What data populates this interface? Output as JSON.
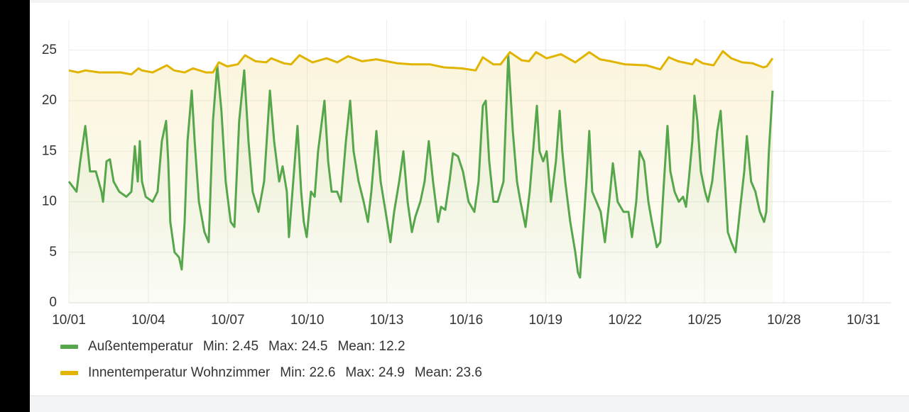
{
  "chart_data": {
    "type": "line",
    "xlim": [
      1,
      32.05
    ],
    "xticks": [
      {
        "value": 1,
        "label": "10/01"
      },
      {
        "value": 4,
        "label": "10/04"
      },
      {
        "value": 7,
        "label": "10/07"
      },
      {
        "value": 10,
        "label": "10/10"
      },
      {
        "value": 13,
        "label": "10/13"
      },
      {
        "value": 16,
        "label": "10/16"
      },
      {
        "value": 19,
        "label": "10/19"
      },
      {
        "value": 22,
        "label": "10/22"
      },
      {
        "value": 25,
        "label": "10/25"
      },
      {
        "value": 28,
        "label": "10/28"
      },
      {
        "value": 31,
        "label": "10/31"
      }
    ],
    "ylim": [
      0,
      28
    ],
    "yticks": [
      0,
      5,
      10,
      15,
      20,
      25
    ],
    "grid": true,
    "legend": "bottom",
    "series": [
      {
        "name": "Außentemperatur",
        "color": "#56a64b",
        "stats": [
          "Min: 2.45",
          "Max: 24.5",
          "Mean: 12.2"
        ],
        "x": [
          1.0,
          1.29,
          1.43,
          1.62,
          1.8,
          2.02,
          2.23,
          2.29,
          2.42,
          2.55,
          2.69,
          2.9,
          3.17,
          3.36,
          3.49,
          3.6,
          3.68,
          3.76,
          3.9,
          4.16,
          4.35,
          4.51,
          4.67,
          4.75,
          4.83,
          4.99,
          5.16,
          5.26,
          5.37,
          5.48,
          5.64,
          5.75,
          5.91,
          6.12,
          6.28,
          6.44,
          6.6,
          6.76,
          6.92,
          7.11,
          7.25,
          7.43,
          7.62,
          7.78,
          7.94,
          8.16,
          8.37,
          8.59,
          8.75,
          8.94,
          9.07,
          9.23,
          9.31,
          9.47,
          9.63,
          9.77,
          9.87,
          9.98,
          10.14,
          10.28,
          10.41,
          10.65,
          10.79,
          10.92,
          11.13,
          11.27,
          11.46,
          11.62,
          11.75,
          11.94,
          12.13,
          12.29,
          12.42,
          12.61,
          12.77,
          12.96,
          13.14,
          13.28,
          13.47,
          13.63,
          13.79,
          13.95,
          14.08,
          14.27,
          14.43,
          14.59,
          14.75,
          14.94,
          15.05,
          15.21,
          15.37,
          15.5,
          15.69,
          15.88,
          16.09,
          16.31,
          16.47,
          16.63,
          16.74,
          16.87,
          17.03,
          17.19,
          17.41,
          17.59,
          17.76,
          17.92,
          18.05,
          18.24,
          18.4,
          18.59,
          18.67,
          18.77,
          18.91,
          19.04,
          19.2,
          19.39,
          19.53,
          19.63,
          19.74,
          19.93,
          20.12,
          20.22,
          20.3,
          20.44,
          20.54,
          20.65,
          20.76,
          20.92,
          21.08,
          21.24,
          21.4,
          21.54,
          21.72,
          21.94,
          22.13,
          22.26,
          22.42,
          22.55,
          22.72,
          22.88,
          23.01,
          23.2,
          23.33,
          23.47,
          23.6,
          23.71,
          23.87,
          24.03,
          24.19,
          24.3,
          24.4,
          24.54,
          24.62,
          24.73,
          24.86,
          25.02,
          25.13,
          25.29,
          25.48,
          25.61,
          25.75,
          25.88,
          26.01,
          26.17,
          26.33,
          26.5,
          26.6,
          26.76,
          26.92,
          27.09,
          27.25,
          27.33,
          27.43,
          27.57
        ],
        "values": [
          12,
          11,
          14,
          17.5,
          13,
          13,
          11,
          10,
          14,
          14.2,
          12,
          11,
          10.5,
          11,
          15.5,
          12,
          16,
          12,
          10.5,
          10,
          11,
          16,
          18,
          14,
          8,
          5,
          4.5,
          3.3,
          8,
          16,
          21,
          16,
          10,
          7,
          6,
          18,
          23.5,
          19,
          12,
          8,
          7.5,
          18,
          23,
          16,
          11,
          9,
          12,
          21,
          16,
          12,
          13.5,
          11,
          6.5,
          12,
          17.5,
          11,
          8,
          6.5,
          11,
          10.5,
          15,
          20,
          14,
          11,
          11,
          10,
          16,
          20,
          15,
          12,
          10,
          8,
          11,
          17,
          12,
          9,
          6,
          9,
          12,
          15,
          10,
          7,
          8.5,
          10,
          12,
          16,
          12,
          8,
          9.5,
          9.2,
          12,
          14.8,
          14.5,
          13,
          10,
          9,
          12,
          19.5,
          20,
          14,
          10,
          10,
          12,
          24.5,
          17,
          12,
          10,
          7.5,
          11,
          17,
          19.5,
          15,
          14,
          15,
          10,
          14,
          19,
          15,
          12,
          8,
          5,
          3,
          2.5,
          8,
          12,
          17,
          11,
          10,
          9,
          6,
          10,
          13.8,
          10,
          9,
          9,
          6.5,
          10,
          15,
          14,
          10,
          8,
          5.5,
          6,
          12,
          17.5,
          13,
          11,
          10,
          10.5,
          9.5,
          12,
          16,
          20.5,
          18,
          13,
          11,
          10,
          12,
          17,
          19,
          13,
          7,
          6,
          5,
          9,
          13,
          16.5,
          12,
          11,
          9,
          8,
          9,
          15,
          21
        ]
      },
      {
        "name": "Innentemperatur Wohnzimmer",
        "color": "#e0b400",
        "stats": [
          "Min: 22.6",
          "Max: 24.9",
          "Mean: 23.6"
        ],
        "x": [
          1.0,
          1.35,
          1.62,
          2.15,
          2.96,
          3.36,
          3.63,
          3.76,
          4.16,
          4.7,
          4.97,
          5.37,
          5.69,
          6.17,
          6.44,
          6.66,
          6.98,
          7.38,
          7.65,
          8.05,
          8.45,
          8.64,
          9.12,
          9.39,
          9.71,
          10.2,
          10.73,
          11.13,
          11.54,
          12.07,
          12.61,
          13.41,
          13.95,
          14.62,
          15.16,
          15.83,
          16.36,
          16.63,
          17.03,
          17.3,
          17.65,
          18.1,
          18.37,
          18.64,
          19.04,
          19.58,
          20.12,
          20.65,
          21.05,
          21.46,
          21.99,
          22.8,
          23.33,
          23.65,
          24.0,
          24.54,
          24.67,
          24.94,
          25.34,
          25.69,
          26.01,
          26.42,
          26.82,
          27.22,
          27.35,
          27.57
        ],
        "values": [
          23,
          22.8,
          23,
          22.8,
          22.8,
          22.6,
          23.2,
          23,
          22.8,
          23.5,
          23,
          22.8,
          23.2,
          22.8,
          22.8,
          23.8,
          23.4,
          23.6,
          24.5,
          23.9,
          23.8,
          24.2,
          23.7,
          23.6,
          24.5,
          23.8,
          24.2,
          23.8,
          24.4,
          23.9,
          24.1,
          23.7,
          23.6,
          23.6,
          23.3,
          23.2,
          23,
          24.3,
          23.6,
          23.6,
          24.8,
          24,
          23.9,
          24.8,
          24.2,
          24.6,
          23.8,
          24.8,
          24.1,
          23.9,
          23.6,
          23.5,
          23.1,
          24.3,
          23.9,
          23.6,
          24.1,
          23.7,
          23.5,
          24.9,
          24.2,
          23.8,
          23.7,
          23.3,
          23.4,
          24.2
        ]
      }
    ]
  }
}
